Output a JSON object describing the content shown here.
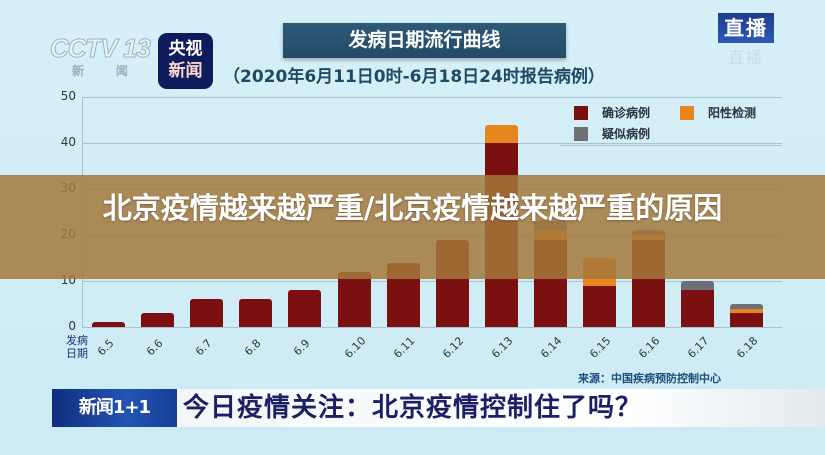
{
  "logos": {
    "cctv": "CCTV 13",
    "cctv_sub": "新 闻",
    "yangshi_line1": "央视",
    "yangshi_line2": "新闻",
    "live": "直播",
    "live_reflection": "直播"
  },
  "header": {
    "title": "发病日期流行曲线",
    "subtitle": "（2020年6月11日0时-6月18日24时报告病例）"
  },
  "overlay": {
    "headline": "北京疫情越来越严重/北京疫情越来越严重的原因"
  },
  "footer": {
    "source": "来源：中国疾病预防控制中心",
    "badge": "新闻1+1",
    "ticker": "今日疫情关注：北京疫情控制住了吗？"
  },
  "chart_data": {
    "type": "bar",
    "stacked": true,
    "title": "发病日期流行曲线",
    "subtitle": "（2020年6月11日0时-6月18日24时报告病例）",
    "xlabel": "发病日期",
    "ylabel": "",
    "ylim": [
      0,
      50
    ],
    "yticks": [
      0,
      10,
      20,
      30,
      40,
      50
    ],
    "grid": true,
    "legend_position": "top-right",
    "categories": [
      "6.5",
      "6.6",
      "6.7",
      "6.8",
      "6.9",
      "6.10",
      "6.11",
      "6.12",
      "6.13",
      "6.14",
      "6.15",
      "6.16",
      "6.17",
      "6.18"
    ],
    "series": [
      {
        "name": "确诊病例",
        "color": "#7a1010",
        "values": [
          1,
          3,
          6,
          6,
          8,
          12,
          14,
          19,
          40,
          19,
          9,
          19,
          8,
          3
        ]
      },
      {
        "name": "阳性检测",
        "color": "#e8861e",
        "values": [
          0,
          0,
          0,
          0,
          0,
          0,
          0,
          0,
          4,
          2,
          6,
          1,
          0,
          1
        ]
      },
      {
        "name": "疑似病例",
        "color": "#6e7075",
        "values": [
          0,
          0,
          0,
          0,
          0,
          0,
          0,
          0,
          0,
          2,
          0,
          1,
          2,
          1
        ]
      }
    ]
  },
  "legend": [
    {
      "label": "确诊病例",
      "color": "#7a1010"
    },
    {
      "label": "阳性检测",
      "color": "#e8861e"
    },
    {
      "label": "疑似病例",
      "color": "#6e7075"
    }
  ],
  "yticks": [
    "50",
    "40",
    "30",
    "20",
    "10",
    "0"
  ],
  "xaxis_title_line1": "发病",
  "xaxis_title_line2": "日期"
}
